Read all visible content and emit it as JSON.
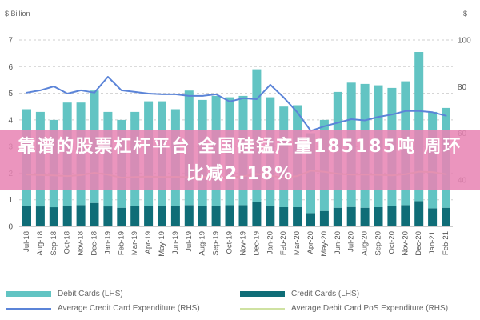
{
  "banner": {
    "lines": [
      "靠谱的股票杠杆平台 全国硅锰产量185185吨 周环",
      "比减2.18%"
    ],
    "background": "#e884b3"
  },
  "chart_data": {
    "type": "bar",
    "stacked": true,
    "ylabel": "$ Billion",
    "y2label": "$",
    "ylim": [
      0,
      7
    ],
    "y2lim": [
      20,
      100
    ],
    "yticks": [
      0,
      1,
      2,
      3,
      4,
      5,
      6,
      7
    ],
    "y2ticks": [
      40,
      60,
      80,
      100
    ],
    "grid": true,
    "legend_position": "bottom",
    "categories": [
      "Jul-18",
      "Aug-18",
      "Sep-18",
      "Oct-18",
      "Nov-18",
      "Dec-18",
      "Jan-19",
      "Feb-19",
      "Mar-19",
      "Apr-19",
      "May-19",
      "Jun-19",
      "Jul-19",
      "Aug-19",
      "Sep-19",
      "Oct-19",
      "Nov-19",
      "Dec-19",
      "Jan-20",
      "Feb-20",
      "Mar-20",
      "Apr-20",
      "May-20",
      "Jun-20",
      "Jul-20",
      "Aug-20",
      "Sep-20",
      "Oct-20",
      "Nov-20",
      "Dec-20",
      "Jan-21",
      "Feb-21"
    ],
    "series": [
      {
        "name": "Debit Cards (LHS)",
        "type": "bar",
        "axis": "left",
        "color": "#62c4c3",
        "values": [
          3.65,
          3.55,
          3.28,
          3.87,
          3.85,
          4.22,
          3.55,
          3.3,
          3.53,
          3.94,
          3.92,
          3.65,
          4.3,
          3.97,
          4.13,
          4.05,
          4.1,
          5.0,
          4.07,
          3.78,
          3.83,
          3.0,
          3.42,
          4.35,
          4.67,
          4.65,
          4.58,
          4.45,
          4.65,
          5.6,
          3.62,
          3.75
        ]
      },
      {
        "name": "Credit Cards (LHS)",
        "type": "bar",
        "axis": "left",
        "color": "#0f6d77",
        "values": [
          0.75,
          0.75,
          0.72,
          0.78,
          0.8,
          0.88,
          0.75,
          0.7,
          0.77,
          0.76,
          0.78,
          0.75,
          0.8,
          0.78,
          0.77,
          0.8,
          0.8,
          0.9,
          0.78,
          0.72,
          0.72,
          0.5,
          0.58,
          0.7,
          0.73,
          0.7,
          0.72,
          0.75,
          0.8,
          0.95,
          0.68,
          0.7
        ]
      },
      {
        "name": "Average Credit Card Expenditure (RHS)",
        "type": "line",
        "axis": "right",
        "color": "#5b84d8",
        "values": [
          77.4,
          78.4,
          80.1,
          77.0,
          78.4,
          77.4,
          84.2,
          78.4,
          77.7,
          77.0,
          76.7,
          76.7,
          76.0,
          76.0,
          76.7,
          73.6,
          75.0,
          74.6,
          80.8,
          75.3,
          69.0,
          61.0,
          63.0,
          64.5,
          66.0,
          65.5,
          67.0,
          68.0,
          69.5,
          69.5,
          69.0,
          67.5
        ]
      },
      {
        "name": "Average Debit Card PoS Expenditure (RHS)",
        "type": "line",
        "axis": "right",
        "color": "#cfe2a2",
        "values": [
          42.3,
          42.0,
          41.9,
          41.6,
          42.0,
          43.0,
          42.2,
          40.9,
          41.2,
          41.4,
          41.2,
          41.3,
          41.1,
          41.3,
          41.2,
          41.0,
          41.5,
          42.5,
          41.8,
          40.9,
          41.6,
          43.9,
          43.4,
          42.6,
          42.2,
          42.3,
          42.1,
          41.9,
          42.4,
          43.5,
          43.3,
          42.4
        ]
      }
    ]
  }
}
